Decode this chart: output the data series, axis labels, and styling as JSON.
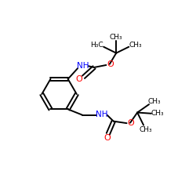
{
  "bg_color": "#ffffff",
  "bond_color": "#000000",
  "O_color": "#ff0000",
  "N_color": "#0000ff",
  "figsize": [
    2.5,
    2.5
  ],
  "dpi": 100,
  "xlim": [
    0,
    10
  ],
  "ylim": [
    0,
    10
  ]
}
